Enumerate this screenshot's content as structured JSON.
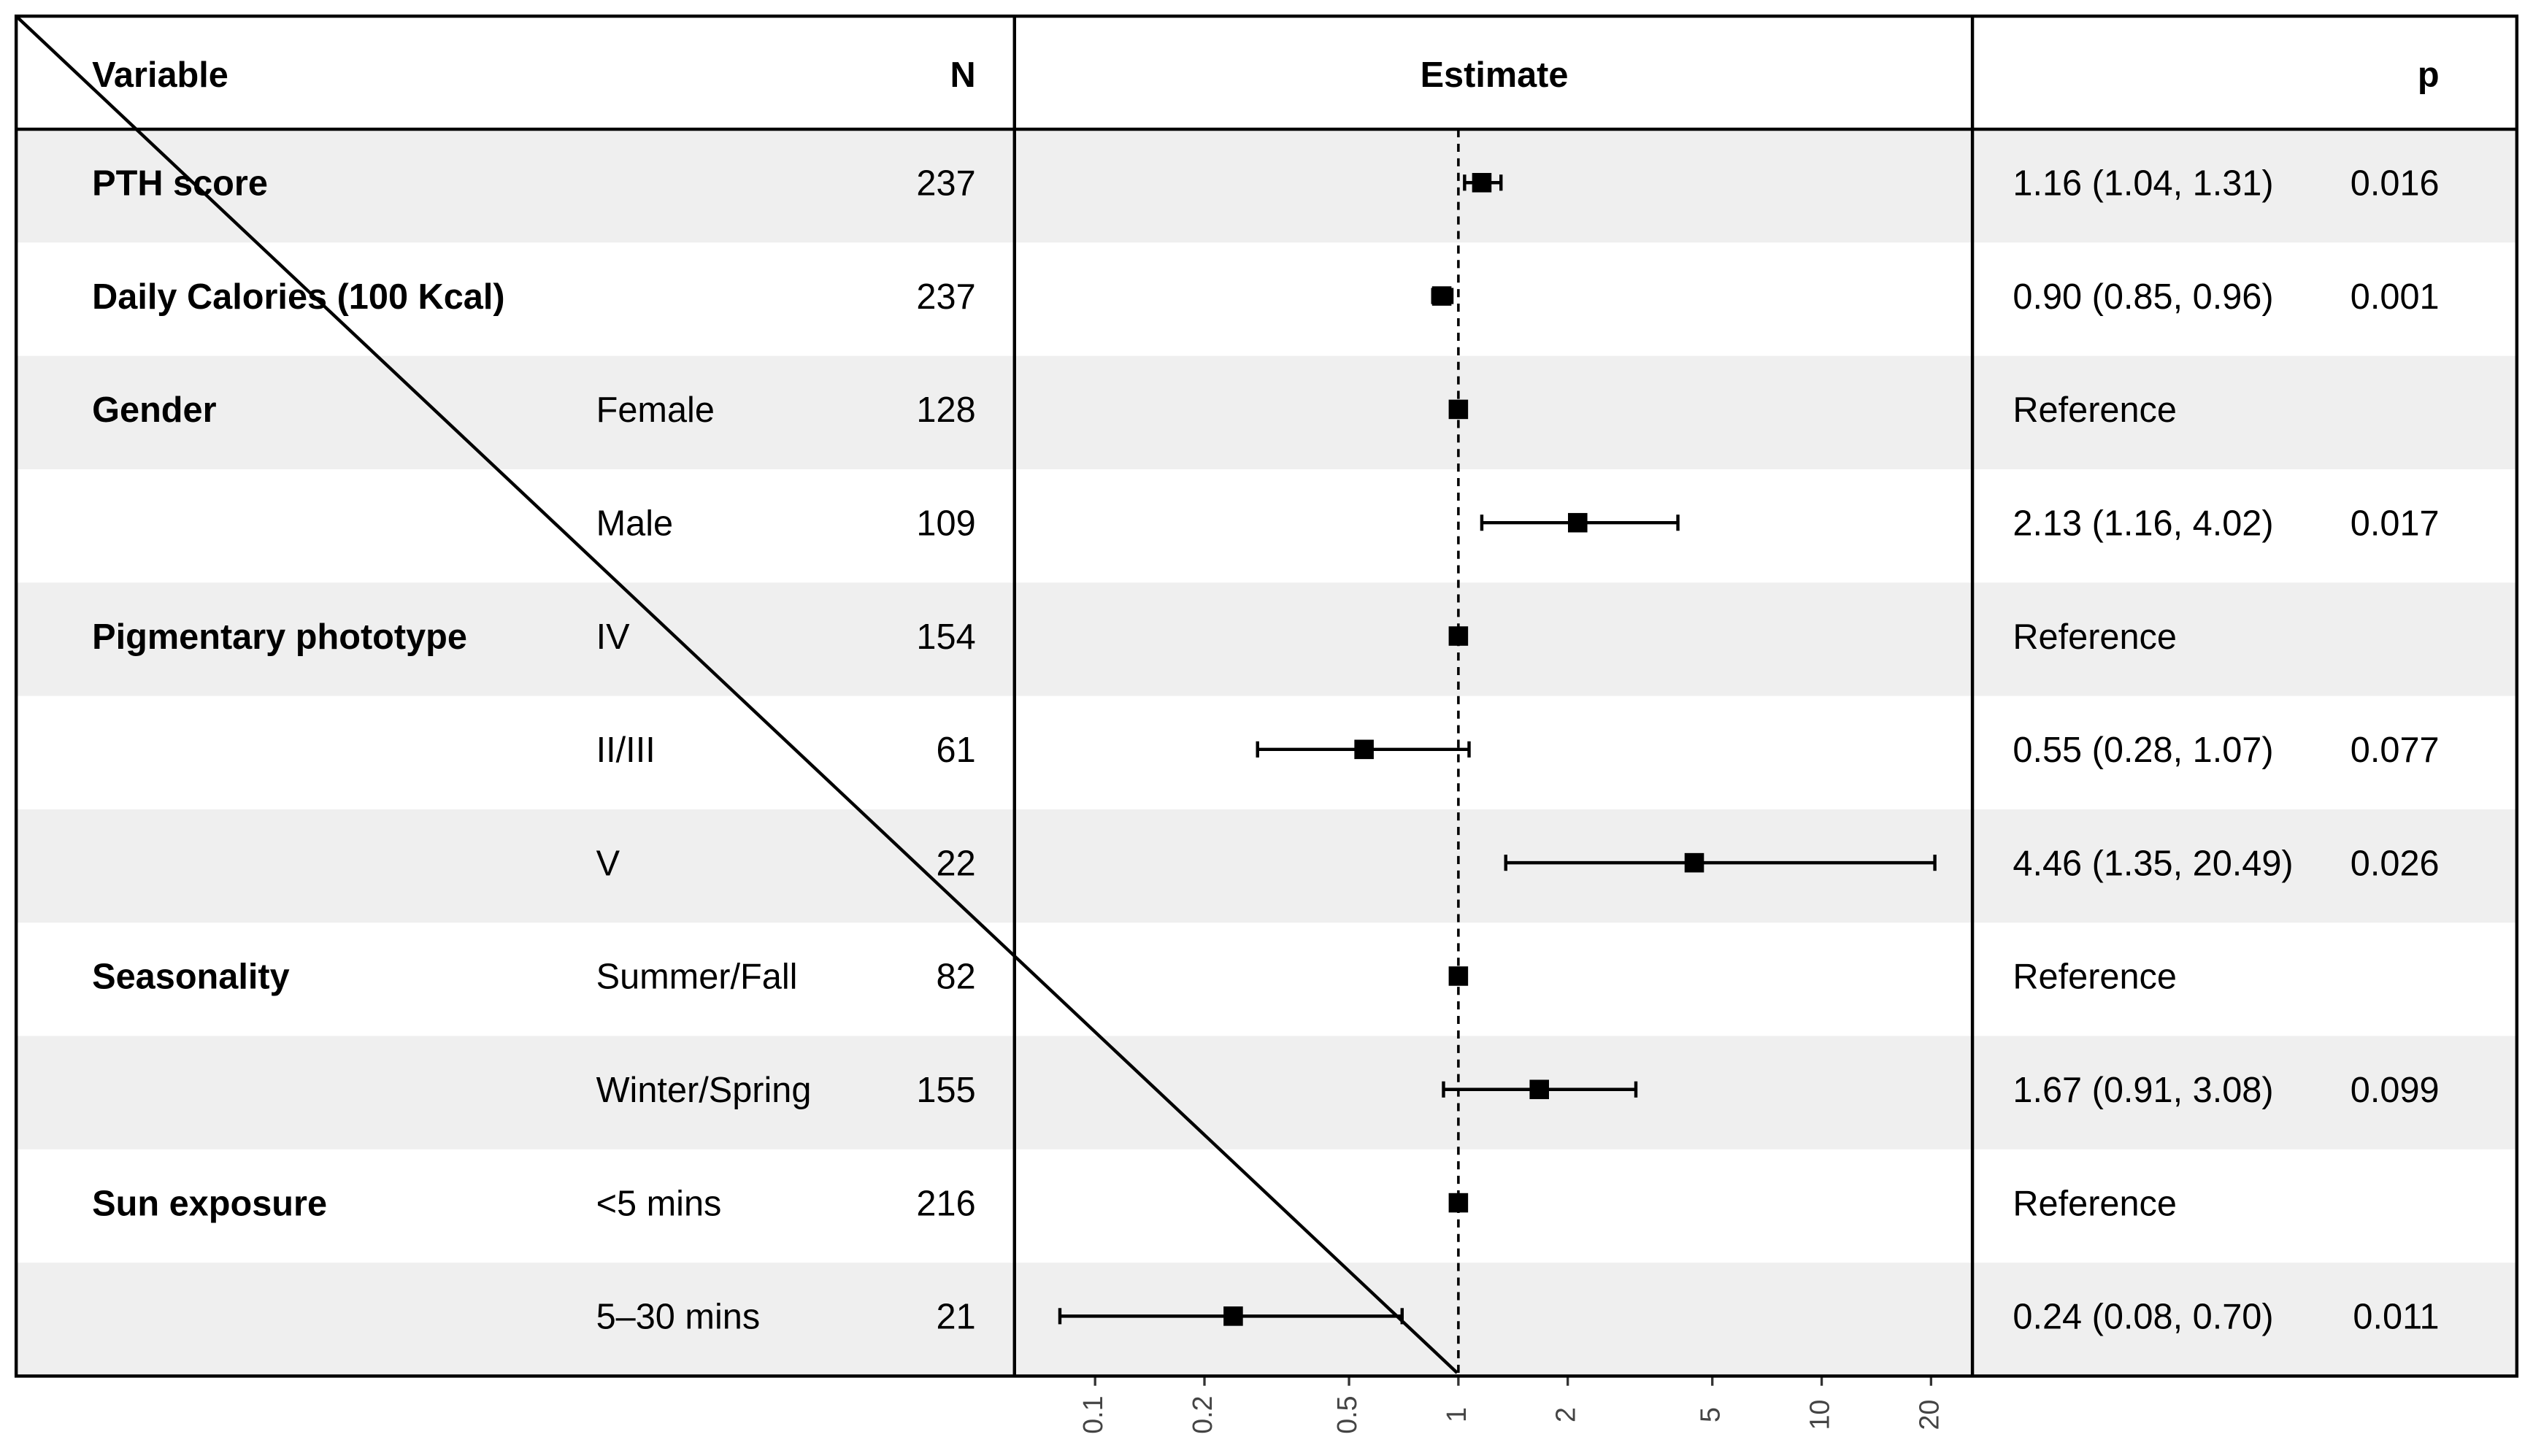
{
  "chart_data": {
    "type": "forest",
    "headers": {
      "variable": "Variable",
      "n": "N",
      "estimate": "Estimate",
      "p": "p"
    },
    "rows": [
      {
        "variable": "PTH score",
        "level": null,
        "n": 237,
        "estimate": 1.16,
        "lower": 1.04,
        "upper": 1.31,
        "ci_label": "1.16 (1.04, 1.31)",
        "p": "0.016"
      },
      {
        "variable": "Daily Calories (100 Kcal)",
        "level": null,
        "n": 237,
        "estimate": 0.9,
        "lower": 0.85,
        "upper": 0.96,
        "ci_label": "0.90 (0.85, 0.96)",
        "p": "0.001"
      },
      {
        "variable": "Gender",
        "level": "Female",
        "n": 128,
        "estimate": 1,
        "lower": null,
        "upper": null,
        "ci_label": "Reference",
        "p": null
      },
      {
        "variable": null,
        "level": "Male",
        "n": 109,
        "estimate": 2.13,
        "lower": 1.16,
        "upper": 4.02,
        "ci_label": "2.13 (1.16, 4.02)",
        "p": "0.017"
      },
      {
        "variable": "Pigmentary phototype",
        "level": "IV",
        "n": 154,
        "estimate": 1,
        "lower": null,
        "upper": null,
        "ci_label": "Reference",
        "p": null
      },
      {
        "variable": null,
        "level": "II/III",
        "n": 61,
        "estimate": 0.55,
        "lower": 0.28,
        "upper": 1.07,
        "ci_label": "0.55 (0.28, 1.07)",
        "p": "0.077"
      },
      {
        "variable": null,
        "level": "V",
        "n": 22,
        "estimate": 4.46,
        "lower": 1.35,
        "upper": 20.49,
        "ci_label": "4.46 (1.35, 20.49)",
        "p": "0.026"
      },
      {
        "variable": "Seasonality",
        "level": "Summer/Fall",
        "n": 82,
        "estimate": 1,
        "lower": null,
        "upper": null,
        "ci_label": "Reference",
        "p": null
      },
      {
        "variable": null,
        "level": "Winter/Spring",
        "n": 155,
        "estimate": 1.67,
        "lower": 0.91,
        "upper": 3.08,
        "ci_label": "1.67 (0.91, 3.08)",
        "p": "0.099"
      },
      {
        "variable": "Sun exposure",
        "level": "<5 mins",
        "n": 216,
        "estimate": 1,
        "lower": null,
        "upper": null,
        "ci_label": "Reference",
        "p": null
      },
      {
        "variable": null,
        "level": "5–30 mins",
        "n": 21,
        "estimate": 0.24,
        "lower": 0.08,
        "upper": 0.7,
        "ci_label": "0.24 (0.08, 0.70)",
        "p": "0.011"
      }
    ],
    "log_x": true,
    "ref_line": 1,
    "xlim": [
      0.06,
      26
    ],
    "xticks": [
      0.1,
      0.2,
      0.5,
      1,
      2,
      5,
      10,
      20
    ]
  }
}
